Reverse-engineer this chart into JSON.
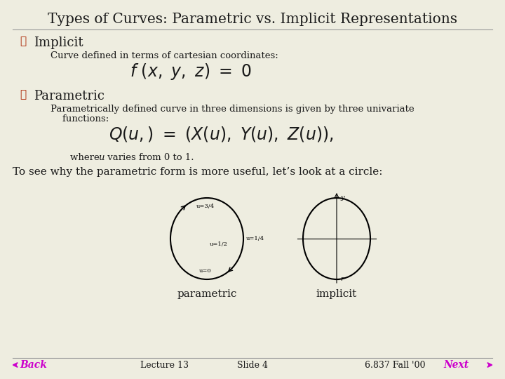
{
  "title": "Types of Curves: Parametric vs. Implicit Representations",
  "bg_color": "#eeede0",
  "title_color": "#1a1a1a",
  "bullet_color": "#aa2200",
  "text_color": "#1a1a1a",
  "magenta_color": "#cc00cc",
  "footer_left": "Back",
  "footer_center_left": "Lecture 13",
  "footer_center": "Slide 4",
  "footer_center_right": "6.837 Fall '00",
  "footer_right": "Next",
  "implicit_sub": "Curve defined in terms of cartesian coordinates:",
  "param_sub1": "Parametrically defined curve in three dimensions is given by three univariate",
  "param_sub2": "    functions:",
  "circle_text": "To see why the parametric form is more useful, let’s look at a circle:",
  "label_parametric": "parametric",
  "label_implicit": "implicit"
}
